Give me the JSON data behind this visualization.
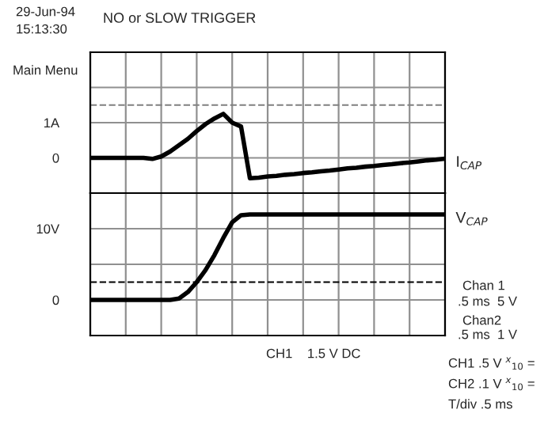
{
  "chart_data": [
    {
      "type": "line",
      "title": "NO or SLOW TRIGGER",
      "categories": [
        null,
        null,
        null,
        null,
        null,
        null,
        null,
        null,
        null,
        null,
        null,
        null,
        null,
        null,
        null,
        null,
        null,
        null,
        null,
        null,
        null,
        null,
        null,
        null,
        null,
        null,
        null,
        null,
        null,
        null,
        null,
        null,
        null,
        null,
        null,
        null,
        null,
        null,
        null,
        null,
        null
      ],
      "series": [
        {
          "name": "I$_{CAP}$",
          "color": "#000000",
          "values": [
            0,
            0,
            0,
            0,
            0,
            0,
            0,
            -0.03,
            0.04,
            0.18,
            0.36,
            0.54,
            0.76,
            0.96,
            1.12,
            1.25,
            1.0,
            0.89,
            -0.58,
            -0.56,
            -0.53,
            -0.51,
            -0.48,
            -0.46,
            -0.43,
            -0.41,
            -0.38,
            -0.36,
            -0.33,
            -0.3,
            -0.28,
            -0.25,
            -0.23,
            -0.2,
            -0.18,
            -0.15,
            -0.13,
            -0.1,
            -0.07,
            -0.05,
            -0.02
          ]
        }
      ],
      "ylim": [
        -1,
        3
      ],
      "yticks": [
        {
          "value": -1,
          "label": null
        },
        0,
        {
          "value": 1,
          "label": "1A"
        },
        {
          "value": 2,
          "label": null
        },
        {
          "value": 3,
          "label": null
        }
      ],
      "grid": true,
      "marker": "none",
      "line_style": "solid",
      "ref_lines": [
        {
          "axis": "y",
          "value": 1.5,
          "label": null,
          "color": "#808080",
          "line_style": "dashed"
        }
      ],
      "annotations": [
        "29-Jun-94",
        "15:13:30",
        "Main Menu"
      ]
    },
    {
      "type": "line",
      "categories": [
        null,
        null,
        null,
        null,
        null,
        null,
        null,
        null,
        null,
        null,
        null,
        null,
        null,
        null,
        null,
        null,
        null,
        null,
        null,
        null,
        null,
        null,
        null,
        null,
        null,
        null,
        null,
        null,
        null,
        null,
        null,
        null,
        null,
        null,
        null,
        null,
        null,
        null,
        null,
        null,
        null
      ],
      "series": [
        {
          "name": "V$_{CAP}$",
          "color": "#000000",
          "values": [
            0,
            0,
            0,
            0,
            0,
            0,
            0,
            0,
            0,
            0,
            0.2,
            1.1,
            2.5,
            4.2,
            6.3,
            8.7,
            10.9,
            11.9,
            12,
            12,
            12,
            12,
            12,
            12,
            12,
            12,
            12,
            12,
            12,
            12,
            12,
            12,
            12,
            12,
            12,
            12,
            12,
            12,
            12,
            12,
            12
          ]
        }
      ],
      "ylim": [
        -5,
        15
      ],
      "yticks": [
        {
          "value": -5,
          "label": null
        },
        0,
        {
          "value": 5,
          "label": null
        },
        {
          "value": 10,
          "label": "10V"
        },
        {
          "value": 15,
          "label": null
        }
      ],
      "grid": true,
      "marker": "none",
      "line_style": "solid",
      "ref_lines": [
        {
          "axis": "y",
          "value": 2.5,
          "label": null,
          "color": "#000000",
          "line_style": "dashed"
        }
      ],
      "annotations": [
        "Chan 1",
        ".5 ms  5 V",
        "Chan2",
        ".5 ms  1 V",
        "CH1    1.5 V DC",
        "CH1 .5 V $^{x}$$_{10}$ =",
        "CH2 .1 V $^{x}$$_{10}$ =",
        "T/div .5 ms"
      ]
    }
  ]
}
